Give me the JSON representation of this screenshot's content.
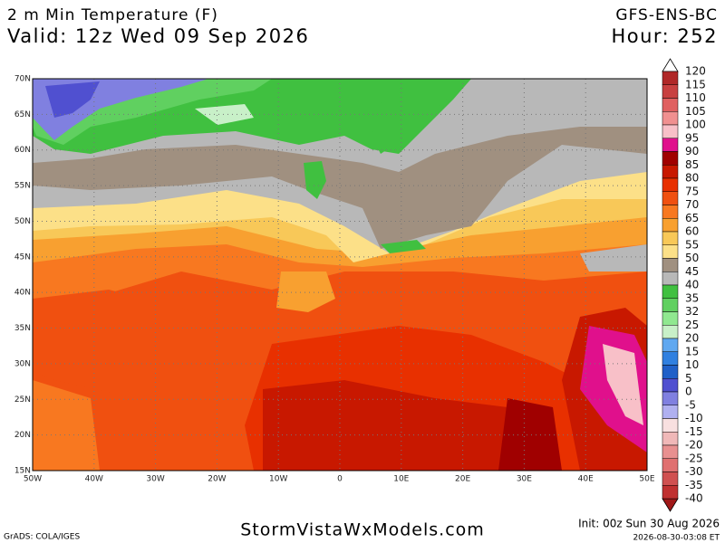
{
  "header": {
    "title": "2 m Min Temperature (F)",
    "valid": "Valid: 12z Wed 09 Sep 2026",
    "model": "GFS-ENS-BC",
    "hour": "Hour: 252"
  },
  "map": {
    "lat_labels": [
      "70N",
      "65N",
      "60N",
      "55N",
      "50N",
      "45N",
      "40N",
      "35N",
      "30N",
      "25N",
      "20N",
      "15N"
    ],
    "lon_labels": [
      "50W",
      "40W",
      "30W",
      "20W",
      "10W",
      "0",
      "10E",
      "20E",
      "30E",
      "40E",
      "50E"
    ]
  },
  "colorbar": {
    "labels": [
      "120",
      "115",
      "110",
      "105",
      "100",
      "95",
      "90",
      "85",
      "80",
      "75",
      "70",
      "65",
      "60",
      "55",
      "50",
      "45",
      "40",
      "35",
      "32",
      "25",
      "20",
      "15",
      "10",
      "5",
      "0",
      "-5",
      "-10",
      "-15",
      "-20",
      "-25",
      "-30",
      "-35",
      "-40"
    ],
    "colors": [
      "#b02828",
      "#c84040",
      "#e06060",
      "#f09090",
      "#f8c0c8",
      "#e0108c",
      "#a00000",
      "#c81800",
      "#e83000",
      "#f05010",
      "#f87820",
      "#f8a030",
      "#f8c858",
      "#fce088",
      "#a09080",
      "#b8b8b8",
      "#40c040",
      "#60d060",
      "#90e890",
      "#c8f0c8",
      "#60a8f0",
      "#3080e0",
      "#2060c8",
      "#5050d0",
      "#8080e0",
      "#b0b0f0",
      "#f8e0e0",
      "#f0b8b8",
      "#e89090",
      "#e07070",
      "#d05050",
      "#c03030"
    ]
  },
  "footer": {
    "grads": "GrADS: COLA/IGES",
    "site": "StormVistaWxModels.com",
    "init": "Init: 00z Sun 30 Aug 2026",
    "timestamp": "2026-08-30-03:08 ET"
  }
}
